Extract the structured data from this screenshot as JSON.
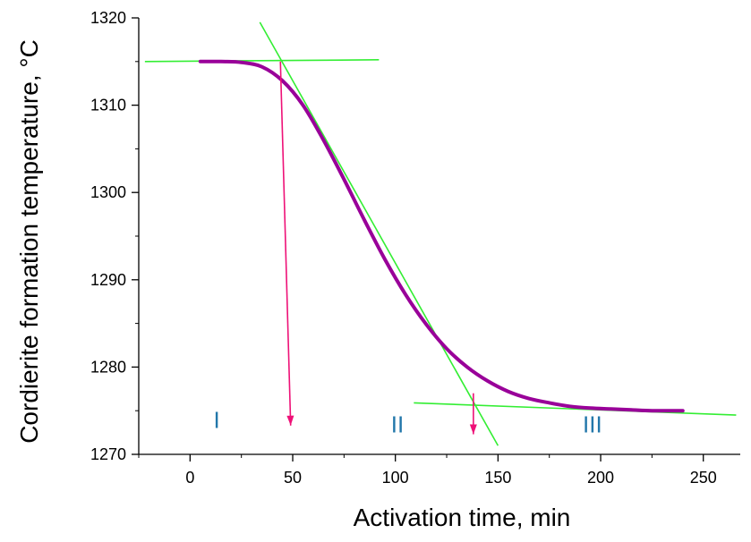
{
  "chart_data": {
    "type": "line",
    "xlabel": "Activation time, min",
    "ylabel": "Cordierite formation temperature, °C",
    "xlim": [
      -25,
      268
    ],
    "ylim": [
      1270,
      1320
    ],
    "x_ticks": [
      "0",
      "50",
      "100",
      "150",
      "200",
      "250"
    ],
    "x_tick_values": [
      0,
      50,
      100,
      150,
      200,
      250
    ],
    "y_ticks": [
      "1270",
      "1280",
      "1290",
      "1300",
      "1310",
      "1320"
    ],
    "y_tick_values": [
      1270,
      1280,
      1290,
      1300,
      1310,
      1320
    ],
    "series": [
      {
        "color": "#990099",
        "x": [
          5,
          15,
          25,
          35,
          45,
          55,
          65,
          75,
          85,
          95,
          105,
          115,
          125,
          135,
          145,
          155,
          165,
          175,
          185,
          195,
          205,
          215,
          225,
          240
        ],
        "y": [
          1315,
          1315,
          1314.9,
          1314.4,
          1312.8,
          1310,
          1306,
          1301.5,
          1296.8,
          1292.3,
          1288.3,
          1284.9,
          1282.1,
          1280,
          1278.4,
          1277.2,
          1276.4,
          1275.9,
          1275.5,
          1275.3,
          1275.2,
          1275.1,
          1275,
          1275
        ]
      }
    ],
    "tangent_lines": [
      {
        "color": "#33ee33",
        "x": [
          -22,
          92
        ],
        "y": [
          1315,
          1315.2
        ]
      },
      {
        "color": "#33ee33",
        "x": [
          34,
          150
        ],
        "y": [
          1319.5,
          1271
        ]
      },
      {
        "color": "#33ee33",
        "x": [
          109,
          266
        ],
        "y": [
          1275.9,
          1274.5
        ]
      }
    ],
    "arrows": [
      {
        "color": "#ee1177",
        "from": [
          44,
          1315
        ],
        "to": [
          49,
          1273.3
        ]
      },
      {
        "color": "#ee1177",
        "from": [
          138,
          1277
        ],
        "to": [
          138,
          1272.3
        ]
      }
    ],
    "annotations": [
      {
        "text": "I",
        "x": 13,
        "y": 1273,
        "color": "#2277aa"
      },
      {
        "text": "II",
        "x": 101,
        "y": 1272.5,
        "color": "#2277aa"
      },
      {
        "text": "III",
        "x": 196,
        "y": 1272.5,
        "color": "#2277aa"
      }
    ]
  }
}
